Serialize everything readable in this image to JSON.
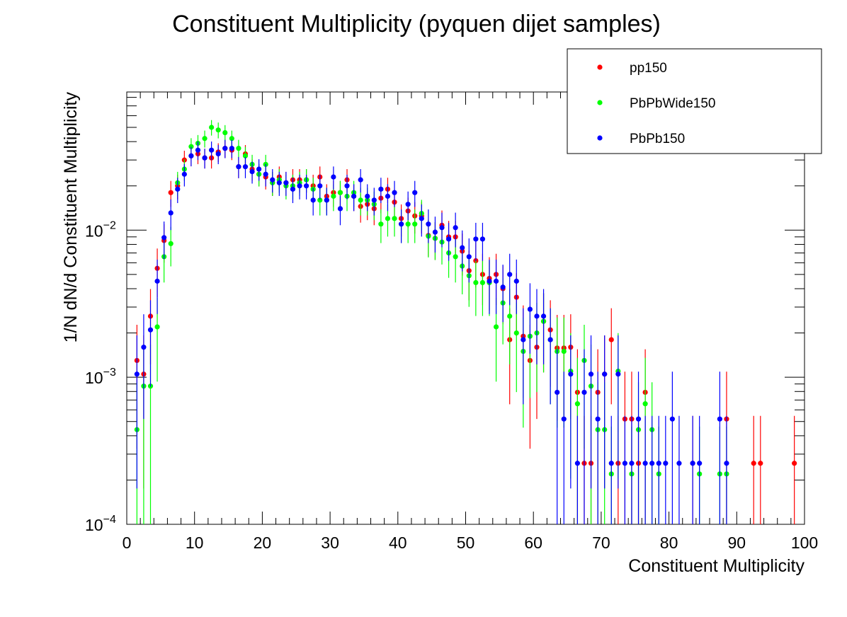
{
  "chart_data": {
    "type": "scatter",
    "title": "Constituent Multiplicity (pyquen dijet samples)",
    "xlabel": "Constituent Multiplicity",
    "ylabel": "1/N dN/d Constituent Multiplicity",
    "xlim": [
      0,
      100
    ],
    "ylim": [
      0.0001,
      0.087
    ],
    "yscale": "log",
    "x_ticks": [
      {
        "value": 0,
        "label": "0"
      },
      {
        "value": 10,
        "label": "10"
      },
      {
        "value": 20,
        "label": "20"
      },
      {
        "value": 30,
        "label": "30"
      },
      {
        "value": 40,
        "label": "40"
      },
      {
        "value": 50,
        "label": "50"
      },
      {
        "value": 60,
        "label": "60"
      },
      {
        "value": 70,
        "label": "70"
      },
      {
        "value": 80,
        "label": "80"
      },
      {
        "value": 90,
        "label": "90"
      },
      {
        "value": 100,
        "label": "100"
      }
    ],
    "y_ticks": [
      {
        "value": 0.0001,
        "base": "10",
        "exp": "−4"
      },
      {
        "value": 0.001,
        "base": "10",
        "exp": "−3"
      },
      {
        "value": 0.01,
        "base": "10",
        "exp": "−2"
      }
    ],
    "grid": false,
    "legend_position": "top-right",
    "series": [
      {
        "name": "pp150",
        "color": "#ff0000",
        "x": [
          1.5,
          2.5,
          3.5,
          4.5,
          5.5,
          6.5,
          7.5,
          8.5,
          9.5,
          10.5,
          11.5,
          12.5,
          13.5,
          14.5,
          15.5,
          16.5,
          17.5,
          18.5,
          19.5,
          20.5,
          21.5,
          22.5,
          23.5,
          24.5,
          25.5,
          26.5,
          27.5,
          28.5,
          29.5,
          30.5,
          31.5,
          32.5,
          33.5,
          34.5,
          35.5,
          36.5,
          37.5,
          38.5,
          39.5,
          40.5,
          41.5,
          42.5,
          43.5,
          44.5,
          45.5,
          46.5,
          47.5,
          48.5,
          49.5,
          50.5,
          51.5,
          52.5,
          53.5,
          54.5,
          55.5,
          56.5,
          57.5,
          58.5,
          59.5,
          60.5,
          61.5,
          62.5,
          63.5,
          64.5,
          65.5,
          66.5,
          67.5,
          68.5,
          69.5,
          70.5,
          71.5,
          72.5,
          73.5,
          74.5,
          75.5,
          76.5,
          83.5,
          88.5,
          92.5,
          93.5,
          98.5
        ],
        "y": [
          0.0013,
          0.00105,
          0.0026,
          0.0055,
          0.0085,
          0.018,
          0.02,
          0.03,
          0.032,
          0.033,
          0.031,
          0.031,
          0.034,
          0.036,
          0.035,
          0.027,
          0.033,
          0.026,
          0.024,
          0.023,
          0.021,
          0.023,
          0.021,
          0.022,
          0.022,
          0.022,
          0.02,
          0.023,
          0.017,
          0.018,
          0.018,
          0.022,
          0.017,
          0.0145,
          0.015,
          0.014,
          0.0165,
          0.019,
          0.0155,
          0.012,
          0.0135,
          0.0125,
          0.0125,
          0.0092,
          0.0088,
          0.0108,
          0.009,
          0.009,
          0.0072,
          0.0053,
          0.0062,
          0.005,
          0.0047,
          0.005,
          0.004,
          0.0018,
          0.0035,
          0.0019,
          0.0013,
          0.0016,
          0.0024,
          0.0021,
          0.00158,
          0.00158,
          0.0016,
          0.00079,
          0.00026,
          0.00026,
          0.00079,
          0.00105,
          0.0018,
          0.00026,
          0.00052,
          0.00052,
          0.00026,
          0.00079,
          0.00026,
          0.00052,
          0.00026,
          0.00026,
          0.00026
        ]
      },
      {
        "name": "PbPbWide150",
        "color": "#00ff00",
        "x": [
          1.5,
          2.5,
          3.5,
          4.5,
          5.5,
          6.5,
          7.5,
          8.5,
          9.5,
          10.5,
          11.5,
          12.5,
          13.5,
          14.5,
          15.5,
          16.5,
          17.5,
          18.5,
          19.5,
          20.5,
          21.5,
          22.5,
          23.5,
          24.5,
          25.5,
          26.5,
          27.5,
          28.5,
          29.5,
          30.5,
          31.5,
          32.5,
          33.5,
          34.5,
          35.5,
          36.5,
          37.5,
          38.5,
          39.5,
          40.5,
          41.5,
          42.5,
          43.5,
          44.5,
          45.5,
          46.5,
          47.5,
          48.5,
          49.5,
          50.5,
          51.5,
          52.5,
          53.5,
          54.5,
          55.5,
          56.5,
          57.5,
          58.5,
          59.5,
          60.5,
          61.5,
          62.5,
          63.5,
          64.5,
          65.5,
          66.5,
          67.5,
          68.5,
          69.5,
          70.5,
          71.5,
          72.5,
          74.5,
          75.5,
          76.5,
          77.5,
          78.5,
          84.5,
          87.5,
          88.5
        ],
        "y": [
          0.00044,
          0.00087,
          0.00087,
          0.0022,
          0.0066,
          0.0081,
          0.021,
          0.026,
          0.037,
          0.039,
          0.042,
          0.05,
          0.048,
          0.046,
          0.042,
          0.036,
          0.032,
          0.028,
          0.024,
          0.028,
          0.021,
          0.022,
          0.02,
          0.02,
          0.021,
          0.022,
          0.019,
          0.016,
          0.016,
          0.017,
          0.018,
          0.017,
          0.018,
          0.016,
          0.016,
          0.015,
          0.011,
          0.012,
          0.012,
          0.011,
          0.011,
          0.011,
          0.013,
          0.0091,
          0.0088,
          0.0083,
          0.007,
          0.0066,
          0.0057,
          0.0049,
          0.0044,
          0.0044,
          0.0044,
          0.0022,
          0.0032,
          0.0026,
          0.002,
          0.0015,
          0.0019,
          0.002,
          0.0024,
          0.0018,
          0.0015,
          0.0015,
          0.0011,
          0.00066,
          0.0013,
          0.00087,
          0.00044,
          0.00044,
          0.00022,
          0.0011,
          0.00022,
          0.00044,
          0.00066,
          0.00044,
          0.00022,
          0.00022,
          0.00022,
          0.00022
        ]
      },
      {
        "name": "PbPb150",
        "color": "#0000ff",
        "x": [
          1.5,
          2.5,
          3.5,
          4.5,
          5.5,
          6.5,
          7.5,
          8.5,
          9.5,
          10.5,
          11.5,
          12.5,
          13.5,
          14.5,
          15.5,
          16.5,
          17.5,
          18.5,
          19.5,
          20.5,
          21.5,
          22.5,
          23.5,
          24.5,
          25.5,
          26.5,
          27.5,
          28.5,
          29.5,
          30.5,
          31.5,
          32.5,
          33.5,
          34.5,
          35.5,
          36.5,
          37.5,
          38.5,
          39.5,
          40.5,
          41.5,
          42.5,
          43.5,
          44.5,
          45.5,
          46.5,
          47.5,
          48.5,
          49.5,
          50.5,
          51.5,
          52.5,
          53.5,
          54.5,
          55.5,
          56.5,
          57.5,
          58.5,
          59.5,
          60.5,
          61.5,
          62.5,
          63.5,
          64.5,
          65.5,
          66.5,
          67.5,
          68.5,
          69.5,
          70.5,
          71.5,
          72.5,
          73.5,
          74.5,
          75.5,
          76.5,
          77.5,
          78.5,
          79.5,
          80.5,
          81.5,
          83.5,
          84.5,
          87.5,
          88.5
        ],
        "y": [
          0.00105,
          0.0016,
          0.0021,
          0.0045,
          0.0089,
          0.0131,
          0.019,
          0.024,
          0.032,
          0.035,
          0.031,
          0.035,
          0.033,
          0.036,
          0.036,
          0.027,
          0.027,
          0.025,
          0.026,
          0.024,
          0.022,
          0.021,
          0.021,
          0.019,
          0.02,
          0.02,
          0.016,
          0.02,
          0.016,
          0.023,
          0.014,
          0.02,
          0.017,
          0.022,
          0.017,
          0.016,
          0.019,
          0.017,
          0.018,
          0.011,
          0.015,
          0.018,
          0.012,
          0.011,
          0.0097,
          0.0104,
          0.0087,
          0.0104,
          0.0076,
          0.0066,
          0.0087,
          0.0087,
          0.0045,
          0.0045,
          0.0041,
          0.005,
          0.0045,
          0.0018,
          0.0029,
          0.0026,
          0.0026,
          0.0018,
          0.00079,
          0.00052,
          0.00105,
          0.00026,
          0.00079,
          0.00105,
          0.00052,
          0.00105,
          0.00026,
          0.00105,
          0.00026,
          0.00026,
          0.00052,
          0.00026,
          0.00026,
          0.00026,
          0.00026,
          0.00052,
          0.00026,
          0.00026,
          0.00026,
          0.00052,
          0.00026
        ]
      }
    ]
  }
}
